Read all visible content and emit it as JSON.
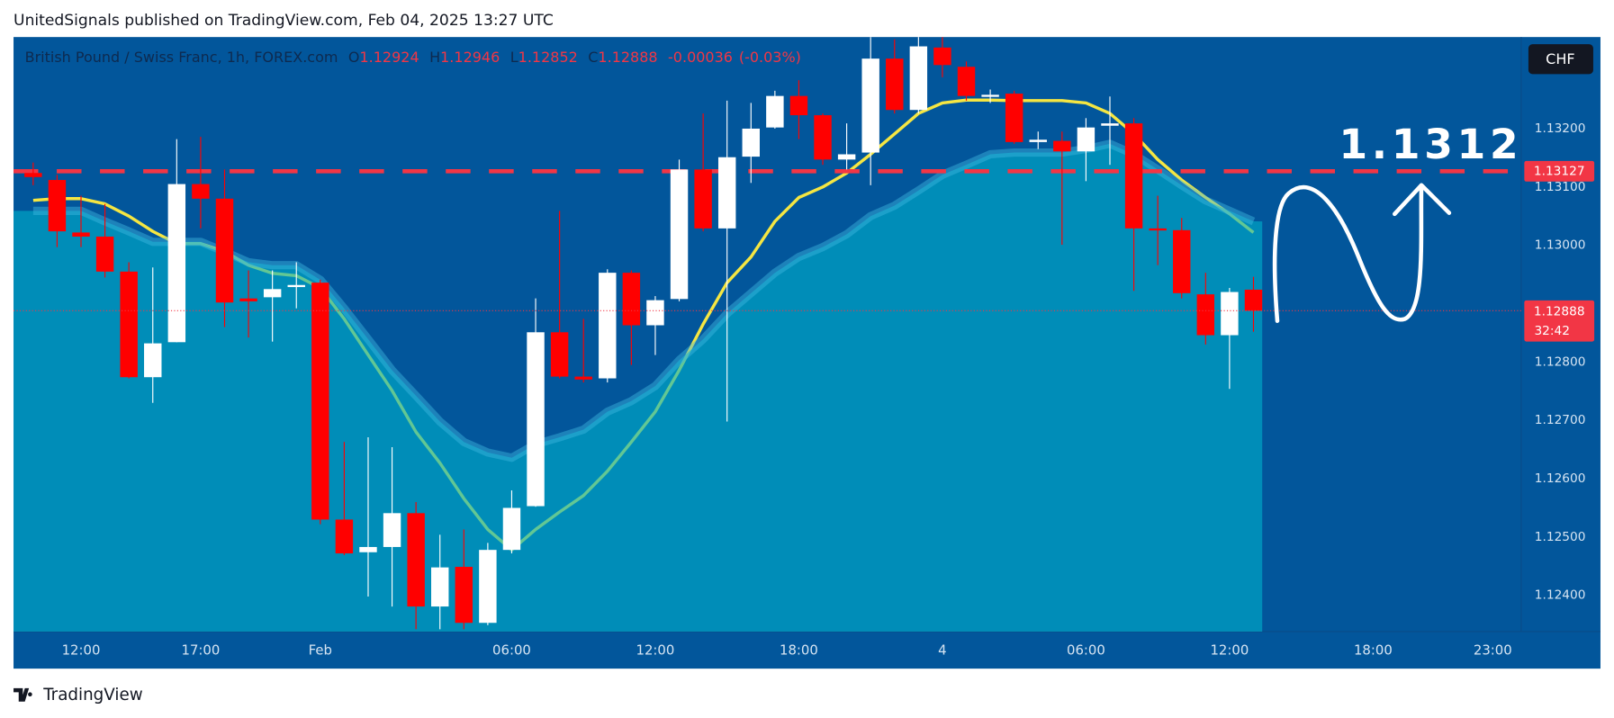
{
  "header": {
    "title": "UnitedSignals published on TradingView.com, Feb 04, 2025 13:27 UTC"
  },
  "footer": {
    "brand": "TradingView"
  },
  "chart_data": {
    "type": "candlestick",
    "symbol": "British Pound / Swiss Franc, 1h, FOREX.com",
    "ohlc_labels": [
      "O",
      "H",
      "L",
      "C"
    ],
    "change": -0.00036,
    "change_percent": {
      "value": -0.03,
      "label": "(-0.03%)"
    },
    "currency": "CHF",
    "countdown": "32:42",
    "annotation": "1.1312",
    "level": {
      "value": 1.13127,
      "color": "#f23645"
    },
    "up_color": "#ffffff",
    "down_color": "#ff0000",
    "open": [
      1.13124,
      1.13112,
      1.13022,
      1.13015,
      1.12955,
      1.12774,
      1.12834,
      1.13105,
      1.1308,
      1.12909,
      1.12911,
      1.12929,
      1.12936,
      1.1253,
      1.12474,
      1.12483,
      1.12541,
      1.12381,
      1.12449,
      1.12353,
      1.12478,
      1.12553,
      1.12851,
      1.12775,
      1.12772,
      1.12953,
      1.12863,
      1.12908,
      1.1313,
      1.13029,
      1.13152,
      1.13202,
      1.13256,
      1.13223,
      1.13147,
      1.13159,
      1.1332,
      1.13232,
      1.13339,
      1.13306,
      1.13255,
      1.1326,
      1.13177,
      1.13179,
      1.13161,
      1.13205,
      1.13209,
      1.13029,
      1.13026,
      1.12916,
      1.12846,
      1.12924
    ],
    "high": [
      1.13142,
      1.13121,
      1.13085,
      1.13071,
      1.12971,
      1.12962,
      1.13182,
      1.13186,
      1.1313,
      1.12957,
      1.12957,
      1.12971,
      1.12941,
      1.12663,
      1.12671,
      1.12654,
      1.1256,
      1.12504,
      1.12513,
      1.1249,
      1.1258,
      1.12909,
      1.13059,
      1.12874,
      1.12959,
      1.12957,
      1.12913,
      1.13147,
      1.13226,
      1.13248,
      1.13244,
      1.13265,
      1.13283,
      1.13226,
      1.13209,
      1.13357,
      1.13353,
      1.13357,
      1.13357,
      1.13315,
      1.13267,
      1.13265,
      1.13195,
      1.13195,
      1.13218,
      1.13255,
      1.13218,
      1.13085,
      1.13047,
      1.12953,
      1.12927,
      1.12946
    ],
    "low": [
      1.13103,
      1.12997,
      1.12997,
      1.12945,
      1.12772,
      1.1273,
      1.12834,
      1.13029,
      1.1286,
      1.12842,
      1.12835,
      1.12892,
      1.12522,
      1.12469,
      1.12398,
      1.12381,
      1.12342,
      1.12342,
      1.12342,
      1.12349,
      1.12472,
      1.12552,
      1.12772,
      1.12765,
      1.12765,
      1.12795,
      1.12812,
      1.12904,
      1.13024,
      1.12698,
      1.13107,
      1.132,
      1.13182,
      1.13138,
      1.1313,
      1.13103,
      1.13226,
      1.13226,
      1.13288,
      1.13248,
      1.13244,
      1.13174,
      1.13165,
      1.13001,
      1.1311,
      1.13138,
      1.12922,
      1.12966,
      1.12909,
      1.1283,
      1.12754,
      1.12852
    ],
    "close": [
      1.13117,
      1.13024,
      1.13015,
      1.12955,
      1.12774,
      1.12832,
      1.13105,
      1.1308,
      1.12902,
      1.12904,
      1.12925,
      1.12932,
      1.1253,
      1.12472,
      1.12483,
      1.12541,
      1.12381,
      1.12448,
      1.12353,
      1.12478,
      1.1255,
      1.12851,
      1.12775,
      1.1277,
      1.12953,
      1.12863,
      1.12906,
      1.1313,
      1.13029,
      1.13151,
      1.132,
      1.13256,
      1.13223,
      1.13147,
      1.13156,
      1.1332,
      1.13232,
      1.13341,
      1.13309,
      1.13256,
      1.13258,
      1.13177,
      1.13181,
      1.13161,
      1.13202,
      1.13209,
      1.13029,
      1.13026,
      1.12918,
      1.12846,
      1.1292,
      1.12888
    ],
    "lines": [
      {
        "color": "#3fb8e0",
        "fill": "rgba(0,178,204,0.6)",
        "values": [
          1.13059,
          1.13059,
          1.13059,
          1.13041,
          1.13024,
          1.13006,
          1.13006,
          1.13006,
          1.12989,
          1.12971,
          1.12966,
          1.12966,
          1.12941,
          1.12892,
          1.12839,
          1.12786,
          1.12742,
          1.12698,
          1.12663,
          1.12645,
          1.12636,
          1.12659,
          1.12671,
          1.12684,
          1.12715,
          1.12733,
          1.12759,
          1.12803,
          1.12839,
          1.12883,
          1.12918,
          1.12953,
          1.1298,
          1.12997,
          1.13019,
          1.1305,
          1.13068,
          1.13094,
          1.13121,
          1.13138,
          1.13156,
          1.13159,
          1.13159,
          1.13159,
          1.13165,
          1.13174,
          1.13156,
          1.1313,
          1.13103,
          1.13077,
          1.13059,
          1.13041
        ]
      },
      {
        "color": "#f5e642",
        "values": [
          1.13077,
          1.1308,
          1.1308,
          1.13071,
          1.1305,
          1.13024,
          1.13003,
          1.13003,
          1.12989,
          1.12966,
          1.12952,
          1.12948,
          1.12927,
          1.12874,
          1.12812,
          1.12751,
          1.1268,
          1.12627,
          1.12566,
          1.12513,
          1.12478,
          1.12513,
          1.12543,
          1.12571,
          1.12613,
          1.12663,
          1.12715,
          1.12786,
          1.12865,
          1.12936,
          1.1298,
          1.13041,
          1.13082,
          1.131,
          1.13124,
          1.13156,
          1.13191,
          1.13226,
          1.13244,
          1.13249,
          1.13249,
          1.13248,
          1.13248,
          1.13248,
          1.13244,
          1.13226,
          1.13191,
          1.13147,
          1.13112,
          1.13082,
          1.13054,
          1.13022
        ]
      }
    ],
    "xlim": [
      -0.82,
      62.19
    ],
    "xticks": [
      {
        "value": 2,
        "label": "12:00"
      },
      {
        "value": 7,
        "label": "17:00"
      },
      {
        "value": 12,
        "label": "Feb"
      },
      {
        "value": 20,
        "label": "06:00"
      },
      {
        "value": 26,
        "label": "12:00"
      },
      {
        "value": 32,
        "label": "18:00"
      },
      {
        "value": 38,
        "label": "4"
      },
      {
        "value": 44,
        "label": "06:00"
      },
      {
        "value": 50,
        "label": "12:00"
      },
      {
        "value": 56,
        "label": "18:00"
      },
      {
        "value": 61,
        "label": "23:00"
      }
    ],
    "ylim": [
      1.12338,
      1.13357
    ],
    "yticks": [
      {
        "value": 1.132,
        "label": "1.13200"
      },
      {
        "value": 1.131,
        "label": "1.13100"
      },
      {
        "value": 1.13,
        "label": "1.13000"
      },
      {
        "value": 1.128,
        "label": "1.12800"
      },
      {
        "value": 1.127,
        "label": "1.12700"
      },
      {
        "value": 1.126,
        "label": "1.12600"
      },
      {
        "value": 1.125,
        "label": "1.12500"
      },
      {
        "value": 1.124,
        "label": "1.12400"
      }
    ],
    "grid": false
  }
}
